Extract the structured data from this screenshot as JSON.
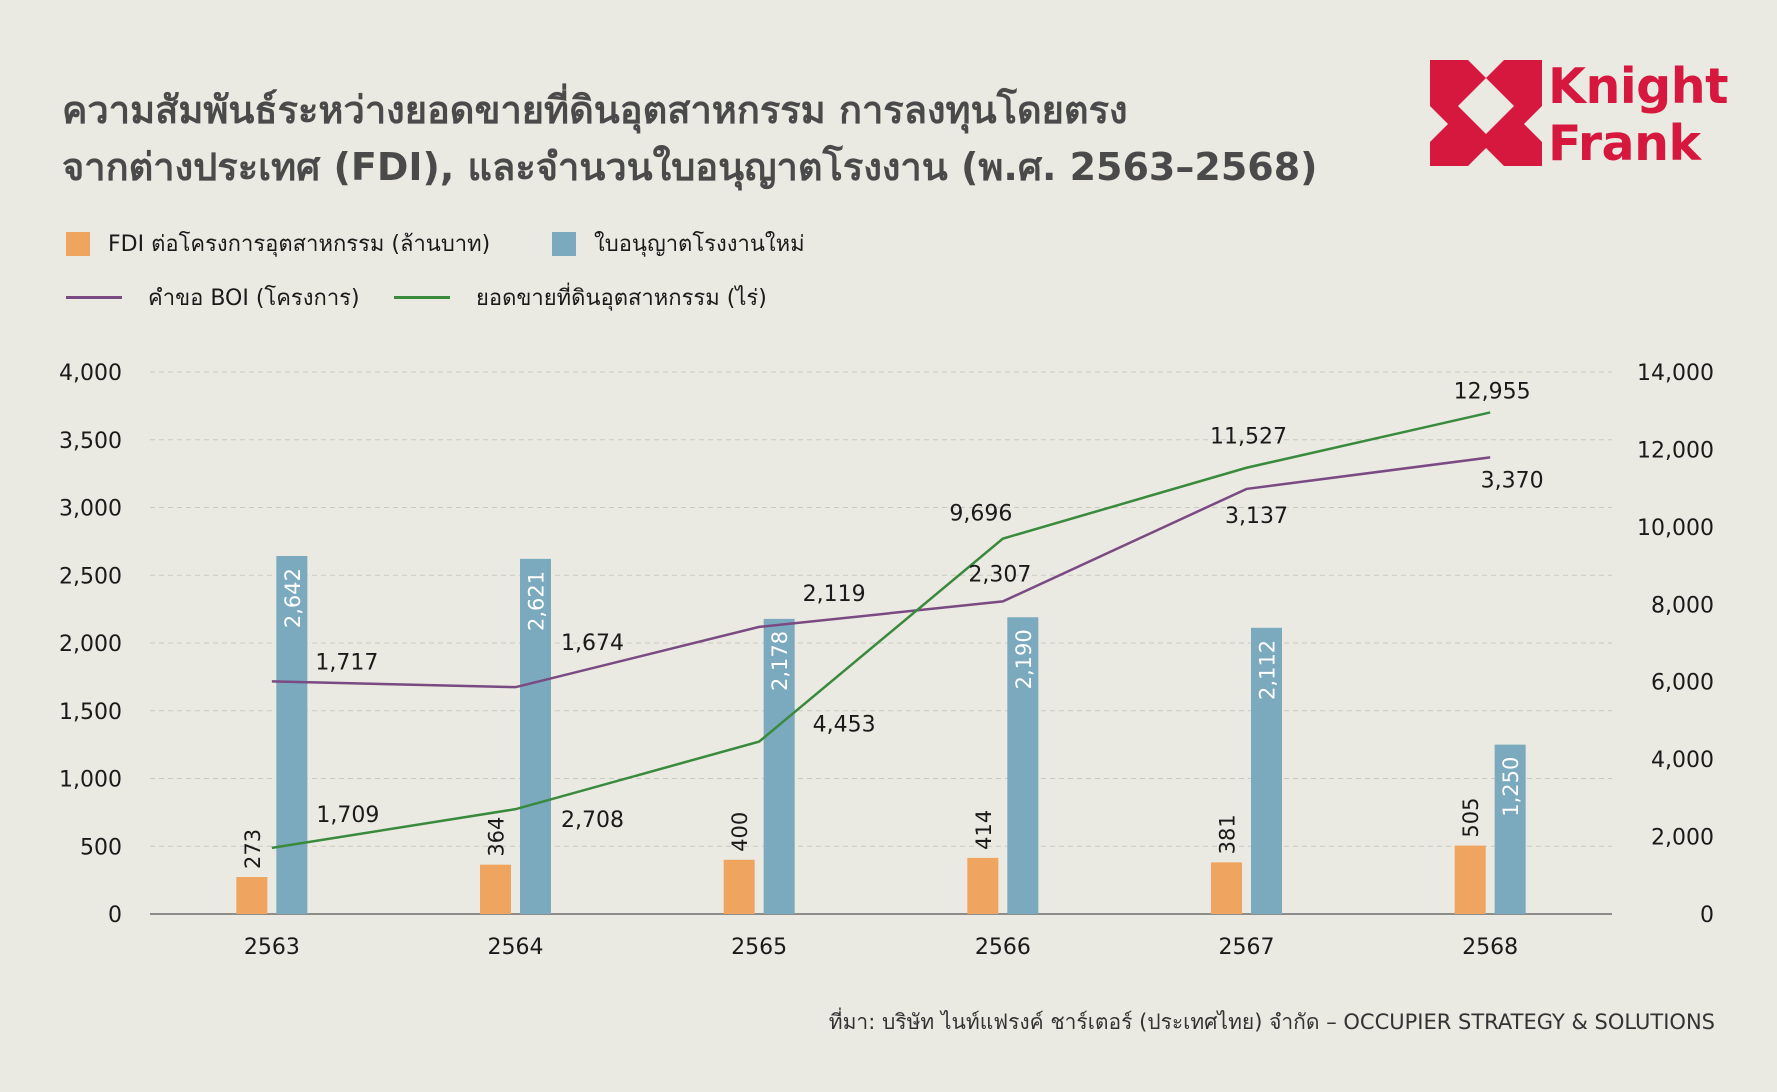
{
  "title": {
    "line1": "ความสัมพันธ์ระหว่างยอดขายที่ดินอุตสาหกรรม การลงทุนโดยตรง",
    "line2": "จากต่างประเทศ (FDI), และจำนวนใบอนุญาตโรงงาน (พ.ศ. 2563–2568)"
  },
  "logo": {
    "line1": "Knight",
    "line2": "Frank"
  },
  "legend": {
    "fdi": "FDI ต่อโครงการอุตสาหกรรม (ล้านบาท)",
    "permits": "ใบอนุญาตโรงงานใหม่",
    "boi": "คำขอ BOI (โครงการ)",
    "land": "ยอดขายที่ดินอุตสาหกรรม (ไร่)"
  },
  "source": "ที่มา: บริษัท ไนท์แฟรงค์ ชาร์เตอร์ (ประเทศไทย) จำกัด – OCCUPIER STRATEGY & SOLUTIONS",
  "colors": {
    "fdi": "#EFA55F",
    "permits": "#7BA9BE",
    "boi": "#7A4A82",
    "land": "#3A8A3E",
    "brand": "#D7183E",
    "background": "#EAEAE2"
  },
  "chart_data": {
    "type": "bar",
    "categories": [
      "2563",
      "2564",
      "2565",
      "2566",
      "2567",
      "2568"
    ],
    "series": [
      {
        "name": "FDI ต่อโครงการอุตสาหกรรม (ล้านบาท)",
        "type": "bar",
        "axis": "left",
        "values": [
          273,
          364,
          400,
          414,
          381,
          505
        ]
      },
      {
        "name": "ใบอนุญาตโรงงานใหม่",
        "type": "bar",
        "axis": "left",
        "values": [
          2642,
          2621,
          2178,
          2190,
          2112,
          1250
        ]
      },
      {
        "name": "คำขอ BOI (โครงการ)",
        "type": "line",
        "axis": "left",
        "values": [
          1717,
          1674,
          2119,
          2307,
          3137,
          3370
        ]
      },
      {
        "name": "ยอดขายที่ดินอุตสาหกรรม (ไร่)",
        "type": "line",
        "axis": "right",
        "values": [
          1709,
          2708,
          4453,
          9696,
          11527,
          12955
        ]
      }
    ],
    "bar_labels": {
      "fdi": [
        "273",
        "364",
        "400",
        "414",
        "381",
        "505"
      ],
      "permits": [
        "2,642",
        "2,621",
        "2,178",
        "2,190",
        "2,112",
        "1,250"
      ]
    },
    "line_labels": {
      "boi": [
        "1,717",
        "1,674",
        "2,119",
        "2,307",
        "3,137",
        "3,370"
      ],
      "land": [
        "1,709",
        "2,708",
        "4,453",
        "9,696",
        "11,527",
        "12,955"
      ]
    },
    "y_left": {
      "ylim": [
        0,
        4000
      ],
      "ticks": [
        "0",
        "500",
        "1,000",
        "1,500",
        "2,000",
        "2,500",
        "3,000",
        "3,500",
        "4,000"
      ]
    },
    "y_right": {
      "ylim": [
        0,
        14000
      ],
      "ticks": [
        "0",
        "2,000",
        "4,000",
        "6,000",
        "8,000",
        "10,000",
        "12,000",
        "14,000"
      ]
    },
    "grid": true,
    "legend_position": "top-left"
  }
}
